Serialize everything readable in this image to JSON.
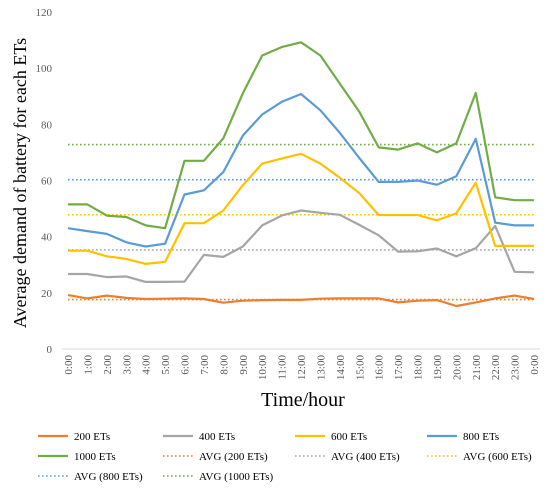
{
  "chart_data": {
    "type": "line",
    "xlabel": "Time/hour",
    "ylabel": "Average demand of battery for each ETs",
    "ylim": [
      0,
      120
    ],
    "yticks": [
      0,
      20,
      40,
      60,
      80,
      100,
      120
    ],
    "grid": false,
    "legend_position": "bottom",
    "categories": [
      "0:00",
      "1:00",
      "2:00",
      "3:00",
      "4:00",
      "5:00",
      "6:00",
      "7:00",
      "8:00",
      "9:00",
      "10:00",
      "11:00",
      "12:00",
      "13:00",
      "14:00",
      "15:00",
      "16:00",
      "17:00",
      "18:00",
      "19:00",
      "20:00",
      "21:00",
      "22:00",
      "23:00",
      "0:00"
    ],
    "series": [
      {
        "name": "200 ETs",
        "color": "#ED7D31",
        "style": "solid",
        "values": [
          19.2,
          18.0,
          19.0,
          18.2,
          17.8,
          17.9,
          18.0,
          17.8,
          16.5,
          17.2,
          17.4,
          17.5,
          17.5,
          17.9,
          18.0,
          18.0,
          18.0,
          16.6,
          17.2,
          17.4,
          15.3,
          16.6,
          18.0,
          19.0,
          17.8
        ]
      },
      {
        "name": "400 ETs",
        "color": "#A5A5A5",
        "style": "solid",
        "values": [
          26.7,
          26.7,
          25.6,
          25.8,
          23.9,
          23.9,
          24.0,
          33.5,
          32.8,
          36.5,
          44.0,
          47.5,
          49.3,
          48.5,
          47.8,
          44.2,
          40.5,
          34.7,
          34.8,
          35.8,
          33.0,
          35.9,
          43.8,
          27.5,
          27.3
        ]
      },
      {
        "name": "600 ETs",
        "color": "#FFC000",
        "style": "solid",
        "values": [
          35.0,
          35.0,
          33.0,
          32.1,
          30.3,
          31.0,
          44.8,
          44.8,
          49.3,
          58.3,
          66.0,
          67.8,
          69.5,
          66.0,
          61.0,
          55.5,
          47.7,
          47.7,
          47.7,
          45.8,
          48.3,
          59.2,
          36.7,
          36.7,
          36.7
        ]
      },
      {
        "name": "800 ETs",
        "color": "#5B9BD5",
        "style": "solid",
        "values": [
          43.0,
          42.0,
          41.0,
          38.0,
          36.5,
          37.5,
          55.0,
          56.5,
          63.0,
          76.0,
          83.5,
          88.0,
          90.8,
          85.0,
          77.0,
          68.0,
          59.5,
          59.5,
          60.0,
          58.5,
          61.5,
          74.8,
          45.0,
          44.0,
          44.0
        ]
      },
      {
        "name": "1000 ETs",
        "color": "#70AD47",
        "style": "solid",
        "values": [
          51.5,
          51.5,
          47.5,
          47.0,
          44.0,
          43.0,
          67.0,
          67.0,
          75.0,
          91.0,
          104.5,
          107.5,
          109.2,
          104.5,
          94.5,
          84.5,
          71.8,
          71.0,
          73.2,
          70.0,
          73.2,
          91.2,
          54.0,
          53.0,
          53.0
        ]
      },
      {
        "name": "AVG (200 ETs)",
        "color": "#ED7D31",
        "style": "dotted",
        "level": 17.6
      },
      {
        "name": "AVG (400 ETs)",
        "color": "#A5A5A5",
        "style": "dotted",
        "level": 35.3
      },
      {
        "name": "AVG (600 ETs)",
        "color": "#FFC000",
        "style": "dotted",
        "level": 47.8
      },
      {
        "name": "AVG (800 ETs)",
        "color": "#5B9BD5",
        "style": "dotted",
        "level": 60.3
      },
      {
        "name": "AVG (1000 ETs)",
        "color": "#70AD47",
        "style": "dotted",
        "level": 72.8
      }
    ]
  }
}
